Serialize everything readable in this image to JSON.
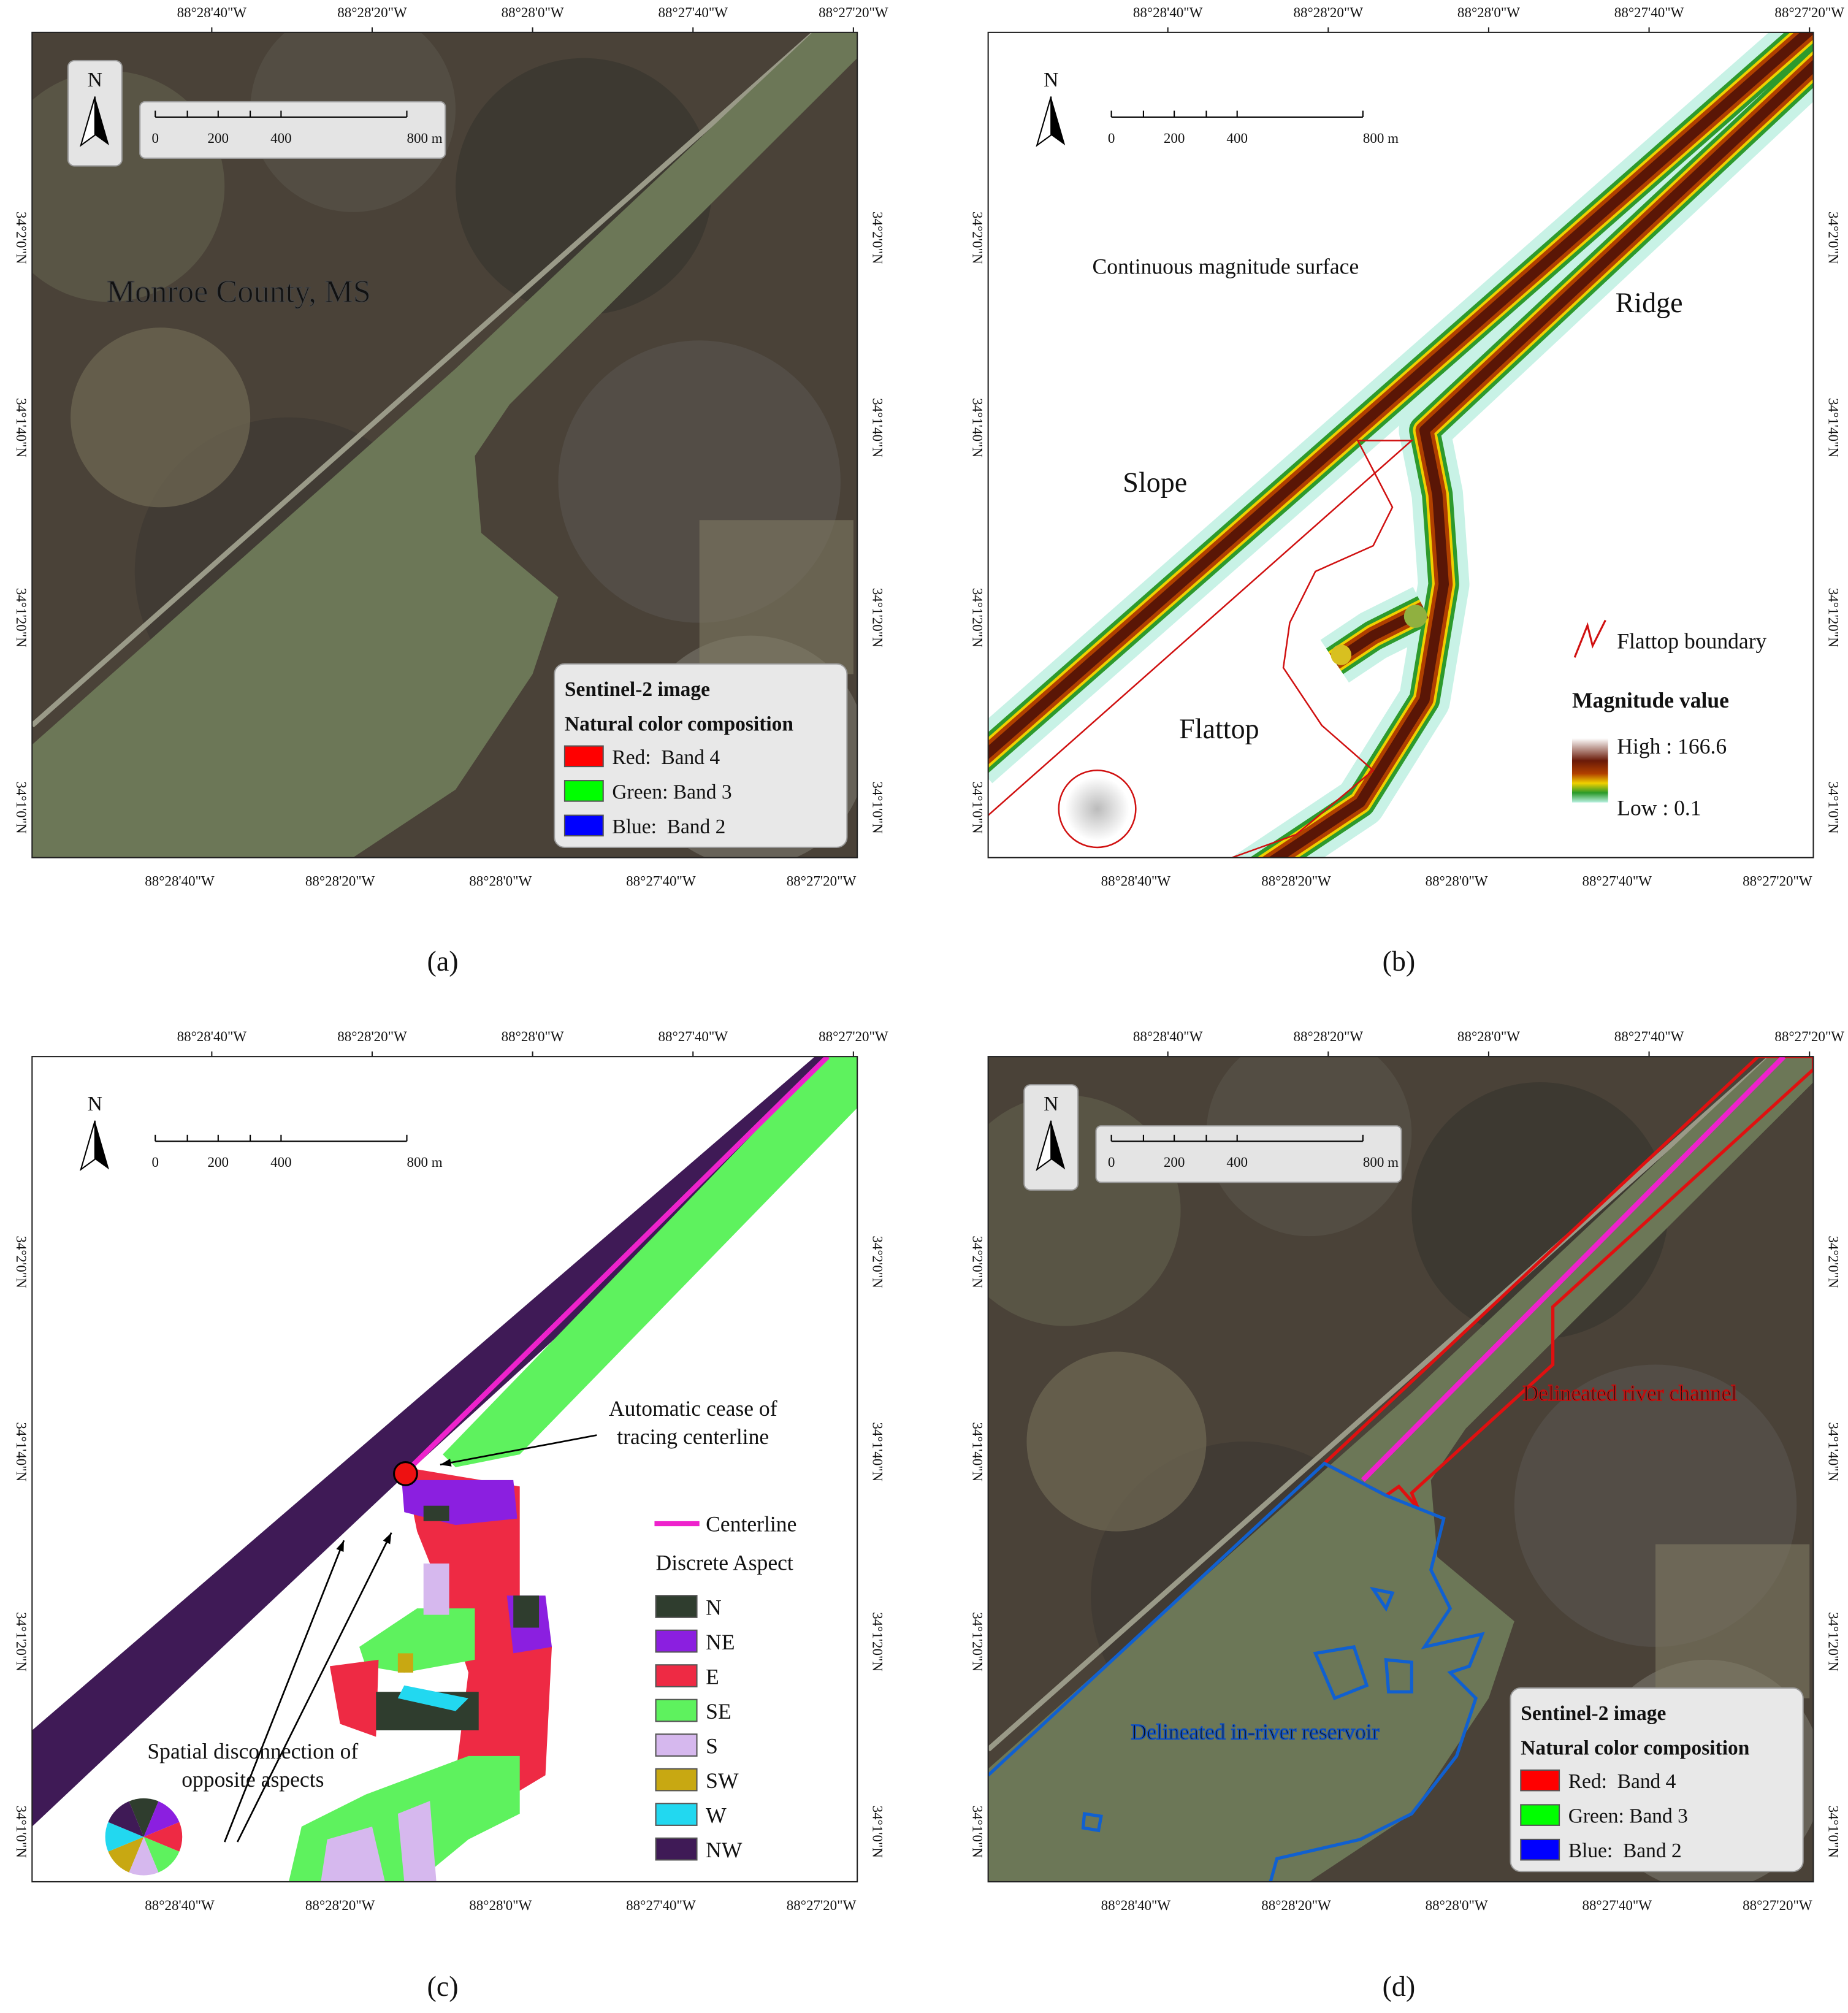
{
  "captions": [
    "(a)",
    "(b)",
    "(c)",
    "(d)"
  ],
  "graticule": {
    "longitudes": [
      "88°28'40\"W",
      "88°28'20\"W",
      "88°28'0\"W",
      "88°27'40\"W",
      "88°27'20\"W"
    ],
    "latitudes": [
      "34°2'0\"N",
      "34°1'40\"N",
      "34°1'20\"N",
      "34°1'0\"N"
    ]
  },
  "north_arrow": "N",
  "scale_bar": [
    "0",
    "200",
    "400",
    "800 m"
  ],
  "panel_a": {
    "place_label": "Monroe County, MS",
    "legend": {
      "title": "Sentinel-2 image",
      "subtitle": "Natural color composition",
      "items": [
        {
          "label": "Red:  Band 4",
          "color": "#ff0000"
        },
        {
          "label": "Green: Band 3",
          "color": "#00ff00"
        },
        {
          "label": "Blue:  Band 2",
          "color": "#0000ff"
        }
      ]
    }
  },
  "panel_b": {
    "surface_label": "Continuous magnitude surface",
    "ridge_label": "Ridge",
    "slope_label": "Slope",
    "flattop_label": "Flattop",
    "legend": {
      "boundary": "Flattop boundary",
      "title": "Magnitude value",
      "high": "High : 166.6",
      "low": "Low : 0.1"
    }
  },
  "panel_c": {
    "cease_note": [
      "Automatic cease of",
      "tracing centerline"
    ],
    "disconnection_note": [
      "Spatial disconnection of",
      "opposite aspects"
    ],
    "legend": {
      "centerline": "Centerline",
      "title": "Discrete Aspect",
      "items": [
        {
          "label": "N",
          "color": "#2f3d2e"
        },
        {
          "label": "NE",
          "color": "#8b1fe0"
        },
        {
          "label": "E",
          "color": "#ee2a44"
        },
        {
          "label": "SE",
          "color": "#5ef25e"
        },
        {
          "label": "S",
          "color": "#d6b8ee"
        },
        {
          "label": "SW",
          "color": "#c8a812"
        },
        {
          "label": "W",
          "color": "#22d8f0"
        },
        {
          "label": "NW",
          "color": "#3f1a56"
        }
      ]
    }
  },
  "panel_d": {
    "channel_label": "Delineated river channel",
    "reservoir_label": "Delineated in-river reservoir"
  }
}
